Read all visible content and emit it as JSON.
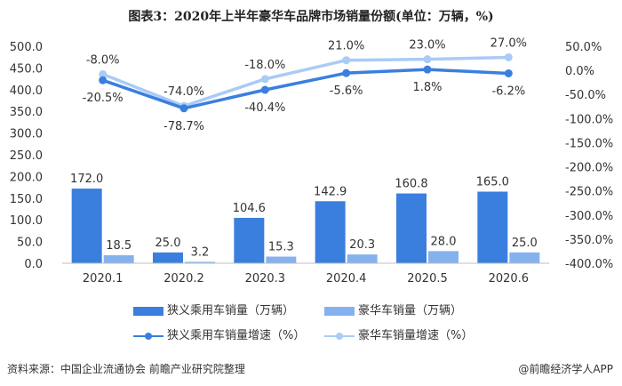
{
  "chart_data": {
    "type": "bar+line",
    "title": "图表3：2020年上半年豪华车品牌市场销量份额(单位：万辆，%)",
    "categories": [
      "2020.1",
      "2020.2",
      "2020.3",
      "2020.4",
      "2020.5",
      "2020.6"
    ],
    "y_left": {
      "ylim": [
        0,
        500
      ],
      "ticks": [
        "0.0",
        "50.0",
        "100.0",
        "150.0",
        "200.0",
        "250.0",
        "300.0",
        "350.0",
        "400.0",
        "450.0",
        "500.0"
      ]
    },
    "y_right": {
      "ylim": [
        -400,
        50
      ],
      "ticks": [
        "-400.0%",
        "-350.0%",
        "-300.0%",
        "-250.0%",
        "-200.0%",
        "-150.0%",
        "-100.0%",
        "-50.0%",
        "0.0%",
        "50.0%"
      ]
    },
    "bar_series": [
      {
        "name": "狭义乘用车销量（万辆）",
        "color": "#3a7fde",
        "values": [
          172.0,
          25.0,
          104.6,
          142.9,
          160.8,
          165.0
        ],
        "labels": [
          "172.0",
          "25.0",
          "104.6",
          "142.9",
          "160.8",
          "165.0"
        ]
      },
      {
        "name": "豪华车销量（万辆）",
        "color": "#85b2ee",
        "values": [
          18.5,
          3.2,
          15.3,
          20.3,
          28.0,
          25.0
        ],
        "labels": [
          "18.5",
          "3.2",
          "15.3",
          "20.3",
          "28.0",
          "25.0"
        ]
      }
    ],
    "line_series": [
      {
        "name": "狭义乘用车销量增速（%）",
        "color": "#3a7fde",
        "values": [
          -20.5,
          -78.7,
          -40.4,
          -5.6,
          1.8,
          -6.2
        ],
        "labels": [
          "-20.5%",
          "-78.7%",
          "-40.4%",
          "-5.6%",
          "1.8%",
          "-6.2%"
        ]
      },
      {
        "name": "豪华车销量增速（%）",
        "color": "#a9cbf5",
        "values": [
          -8.0,
          -74.0,
          -18.0,
          21.0,
          23.0,
          27.0
        ],
        "labels": [
          "-8.0%",
          "-74.0%",
          "-18.0%",
          "21.0%",
          "23.0%",
          "27.0%"
        ]
      }
    ],
    "legend_position": "bottom"
  },
  "source": "资料来源：中国企业流通协会 前瞻产业研究院整理",
  "brand": "@前瞻经济学人APP"
}
